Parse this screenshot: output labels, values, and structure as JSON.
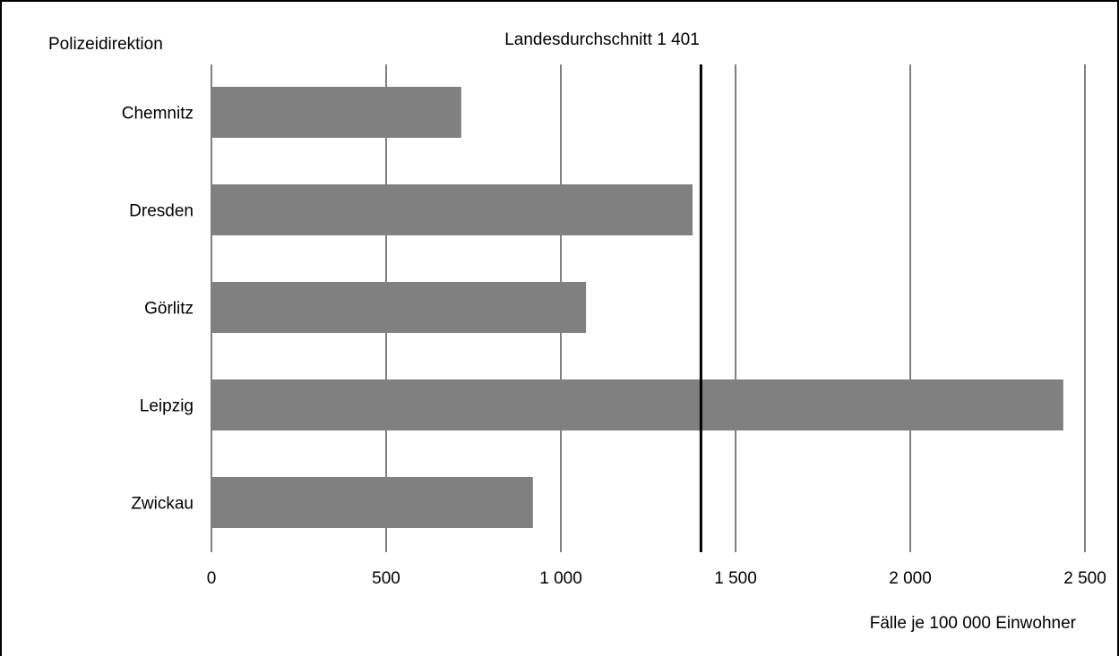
{
  "chart_data": {
    "type": "bar",
    "orientation": "horizontal",
    "category_axis_title": "Polizeidirektion",
    "xlabel": "Fälle je 100 000 Einwohner",
    "categories": [
      "Chemnitz",
      "Dresden",
      "Görlitz",
      "Leipzig",
      "Zwickau"
    ],
    "values": [
      715,
      1377,
      1072,
      2438,
      920
    ],
    "xlim": [
      0,
      2500
    ],
    "xticks": [
      0,
      500,
      1000,
      1500,
      2000,
      2500
    ],
    "xtick_labels": [
      "0",
      "500",
      "1 000",
      "1 500",
      "2 000",
      "2 500"
    ],
    "reference_line": {
      "value": 1401,
      "label": "Landesdurchschnitt 1 401"
    },
    "grid": true,
    "bar_color": "#808080",
    "gridline_color": "#000000",
    "reference_line_color": "#000000"
  }
}
